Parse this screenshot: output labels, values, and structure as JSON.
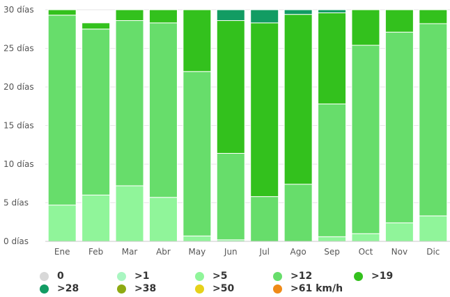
{
  "chart_data": {
    "type": "bar",
    "stacked": true,
    "categories": [
      "Ene",
      "Feb",
      "Mar",
      "Abr",
      "May",
      "Jun",
      "Jul",
      "Ago",
      "Sep",
      "Oct",
      "Nov",
      "Dic"
    ],
    "totals": [
      30,
      28.3,
      30,
      30,
      30,
      30,
      30,
      30,
      30,
      30,
      30,
      30
    ],
    "series": [
      {
        "name": "0",
        "color": "#d8d8d8",
        "values": [
          0,
          0,
          0,
          0,
          0,
          0,
          0,
          0,
          0,
          0,
          0,
          0
        ]
      },
      {
        "name": ">1",
        "color": "#a9f6c1",
        "values": [
          0,
          0,
          0,
          0,
          0,
          0,
          0,
          0,
          0,
          0,
          0,
          0
        ]
      },
      {
        "name": ">5",
        "color": "#90f59a",
        "values": [
          4.7,
          6.0,
          7.2,
          5.7,
          0.7,
          0.2,
          0,
          0,
          0.6,
          1.0,
          2.4,
          3.3
        ]
      },
      {
        "name": ">12",
        "color": "#67dd6b",
        "values": [
          24.6,
          21.5,
          21.4,
          22.6,
          21.3,
          11.2,
          5.8,
          7.4,
          17.2,
          24.4,
          24.7,
          24.9
        ]
      },
      {
        "name": ">19",
        "color": "#33c11d",
        "values": [
          0.6,
          0.8,
          1.4,
          1.7,
          8.0,
          17.2,
          22.5,
          22.0,
          11.8,
          4.6,
          2.9,
          1.8
        ]
      },
      {
        "name": ">28",
        "color": "#129c63",
        "values": [
          0,
          0,
          0,
          0,
          0,
          1.4,
          1.7,
          0.6,
          0.2,
          0,
          0,
          0
        ]
      },
      {
        "name": ">38",
        "color": "#8eaa13",
        "values": [
          0,
          0,
          0,
          0,
          0,
          0,
          0,
          0,
          0,
          0,
          0,
          0
        ]
      },
      {
        "name": ">50",
        "color": "#e6d11a",
        "values": [
          0,
          0,
          0,
          0,
          0,
          0,
          0,
          0,
          0,
          0,
          0,
          0
        ]
      },
      {
        "name": ">61 km/h",
        "color": "#ef8a17",
        "values": [
          0,
          0,
          0,
          0,
          0,
          0,
          0,
          0,
          0,
          0,
          0,
          0
        ]
      }
    ],
    "y_ticks": [
      "0 días",
      "5 días",
      "10 días",
      "15 días",
      "20 días",
      "25 días",
      "30 días"
    ],
    "ylim": [
      0,
      30
    ],
    "grid": true,
    "legend_position": "bottom"
  }
}
